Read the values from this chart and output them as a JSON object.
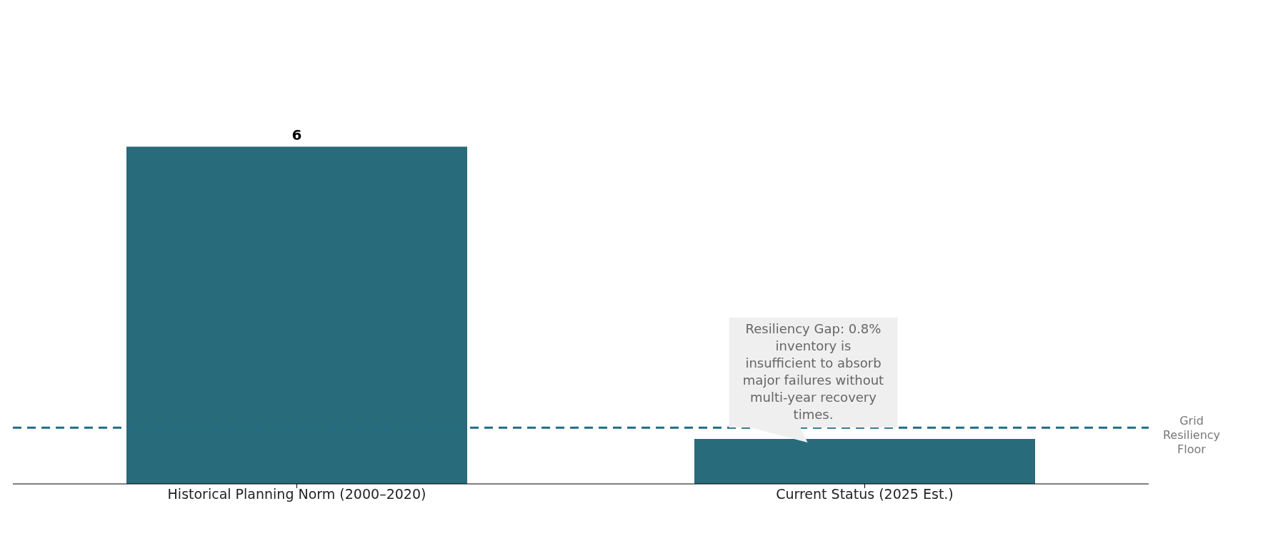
{
  "chart_data": {
    "type": "bar",
    "categories": [
      "Historical Planning Norm (2000–2020)",
      "Current Status (2025 Est.)"
    ],
    "values": [
      6,
      0.8
    ],
    "color": "#286b7a",
    "value_labels": [
      "6",
      null
    ],
    "grid": false,
    "legend": false,
    "ref_lines": [
      {
        "axis": "y",
        "value": 1,
        "label": "Grid Resiliency Floor",
        "color": "#1f6e86",
        "line_style": "dashed"
      }
    ],
    "annotations": [
      {
        "text": "Resiliency Gap: 0.8% inventory is insufficient to absorb major failures without multi-year recovery times.",
        "x": "Current Status (2025 Est.)",
        "y": 0.8
      }
    ]
  }
}
